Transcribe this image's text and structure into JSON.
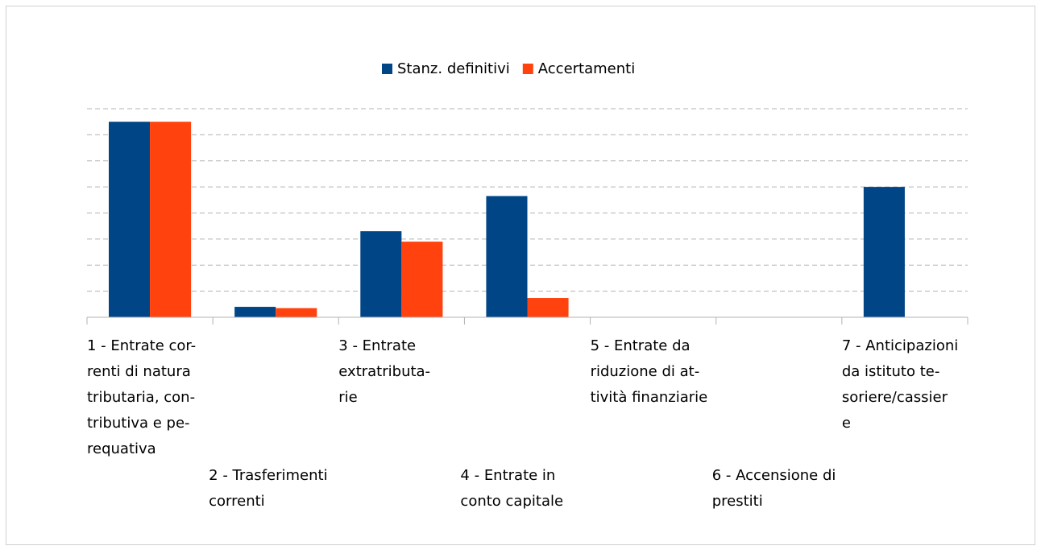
{
  "chart_data": {
    "type": "bar",
    "categories": [
      [
        "1 - Entrate cor-",
        "renti di natura",
        "tributaria, con-",
        "tributiva e pe-",
        "requativa"
      ],
      [
        "2 - Trasferimenti",
        "correnti"
      ],
      [
        "3 - Entrate",
        "extratributa-",
        "rie"
      ],
      [
        "4 - Entrate in",
        "conto capitale"
      ],
      [
        "5 - Entrate da",
        "riduzione di at-",
        "tività finanziarie"
      ],
      [
        "6 - Accensione di",
        "prestiti"
      ],
      [
        "7 - Anticipazioni",
        "da istituto te-",
        "soriere/cassier",
        "e"
      ]
    ],
    "series": [
      {
        "name": "Stanz. definitivi",
        "color": "#004586",
        "values": [
          7.5,
          0.4,
          3.3,
          4.65,
          0,
          0,
          5.0
        ]
      },
      {
        "name": "Accertamenti",
        "color": "#ff420e",
        "values": [
          7.5,
          0.35,
          2.9,
          0.74,
          0,
          0,
          0
        ]
      }
    ],
    "ylim": [
      0,
      8
    ],
    "yticks": [
      0,
      1,
      2,
      3,
      4,
      5,
      6,
      7,
      8
    ],
    "grid": true,
    "legend": "top"
  }
}
